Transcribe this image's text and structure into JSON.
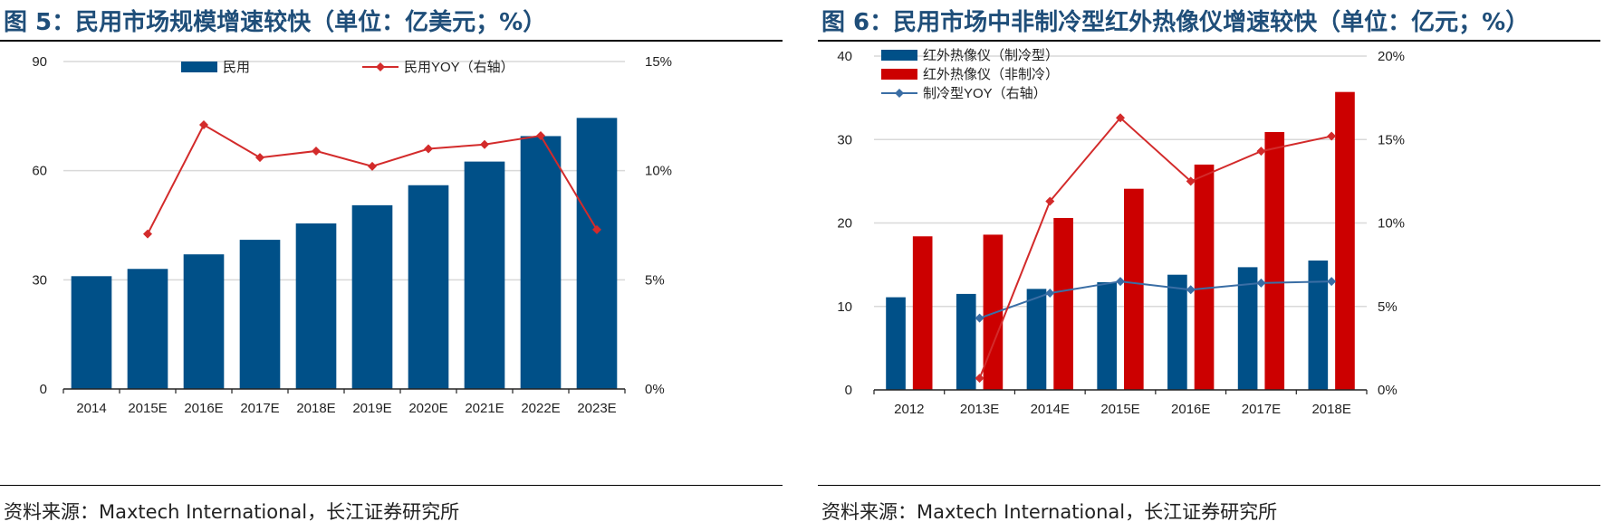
{
  "figures": [
    {
      "title": "图 5：民用市场规模增速较快（单位：亿美元；%）",
      "source": "资料来源：Maxtech International，长江证券研究所"
    },
    {
      "title": "图 6：民用市场中非制冷型红外热像仪增速较快（单位：亿元；%）",
      "source": "资料来源：Maxtech International，长江证券研究所"
    }
  ],
  "colors": {
    "navy": "#005088",
    "red": "#cc0000",
    "line_red": "#d32b2b",
    "line_blue": "#3a6ea5",
    "grid": "#d9d9d9"
  },
  "chart_data": [
    {
      "type": "bar",
      "title": "图 5：民用市场规模增速较快（单位：亿美元；%）",
      "categories": [
        "2014",
        "2015E",
        "2016E",
        "2017E",
        "2018E",
        "2019E",
        "2020E",
        "2021E",
        "2022E",
        "2023E"
      ],
      "series": [
        {
          "name": "民用",
          "type": "bar",
          "axis": "left",
          "color": "#005088",
          "values": [
            31,
            33,
            37,
            41,
            45.5,
            50.5,
            56,
            62.5,
            69.5,
            74.5
          ]
        },
        {
          "name": "民用YOY（右轴）",
          "type": "line",
          "axis": "right",
          "color": "#d32b2b",
          "values": [
            null,
            7.1,
            12.1,
            10.6,
            10.9,
            10.2,
            11.0,
            11.2,
            11.6,
            7.3
          ]
        }
      ],
      "y_left": {
        "ylim": [
          0,
          90
        ],
        "ticks": [
          "0",
          "30",
          "60",
          "90"
        ],
        "tick_values": [
          0,
          30,
          60,
          90
        ]
      },
      "y_right": {
        "ylim": [
          0,
          15
        ],
        "ticks": [
          "0%",
          "5%",
          "10%",
          "15%"
        ],
        "tick_values": [
          0,
          5,
          10,
          15
        ]
      },
      "grid": true,
      "legend": "top"
    },
    {
      "type": "bar",
      "title": "图 6：民用市场中非制冷型红外热像仪增速较快（单位：亿元；%）",
      "categories": [
        "2012",
        "2013E",
        "2014E",
        "2015E",
        "2016E",
        "2017E",
        "2018E"
      ],
      "series": [
        {
          "name": "红外热像仪（制冷型）",
          "type": "bar",
          "axis": "left",
          "color": "#005088",
          "values": [
            11.1,
            11.5,
            12.1,
            12.9,
            13.8,
            14.7,
            15.5
          ]
        },
        {
          "name": "红外热像仪（非制冷）",
          "type": "bar",
          "axis": "left",
          "color": "#cc0000",
          "values": [
            18.4,
            18.6,
            20.6,
            24.1,
            27.0,
            30.9,
            35.7
          ]
        },
        {
          "name": "制冷型YOY（右轴）",
          "type": "line",
          "axis": "right",
          "color": "#3a6ea5",
          "values": [
            null,
            4.3,
            5.8,
            6.5,
            6.0,
            6.4,
            6.5
          ]
        },
        {
          "name": "",
          "type": "line",
          "axis": "right",
          "color": "#d32b2b",
          "unlabeled": true,
          "values": [
            null,
            0.7,
            11.3,
            16.3,
            12.5,
            14.3,
            15.2
          ]
        }
      ],
      "y_left": {
        "ylim": [
          0,
          40
        ],
        "ticks": [
          "0",
          "10",
          "20",
          "30",
          "40"
        ],
        "tick_values": [
          0,
          10,
          20,
          30,
          40
        ]
      },
      "y_right": {
        "ylim": [
          0,
          20
        ],
        "ticks": [
          "0%",
          "5%",
          "10%",
          "15%",
          "20%"
        ],
        "tick_values": [
          0,
          5,
          10,
          15,
          20
        ]
      },
      "grid": true,
      "legend": "top-left"
    }
  ]
}
